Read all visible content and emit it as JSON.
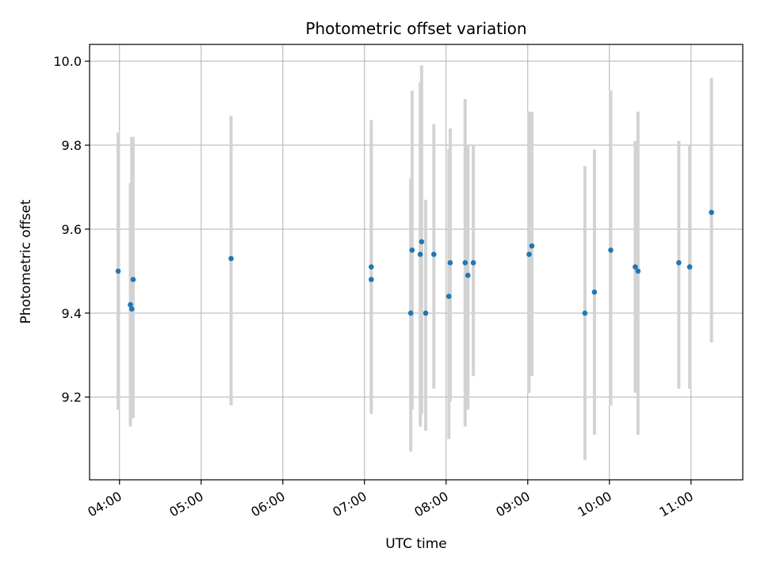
{
  "chart_data": {
    "type": "scatter",
    "title": "Photometric offset variation",
    "xlabel": "UTC time",
    "ylabel": "Photometric offset",
    "x_unit": "time of day (HH:MM)",
    "xlim": [
      "03:38",
      "11:38"
    ],
    "ylim": [
      9.003,
      10.04
    ],
    "x_ticks": [
      "04:00",
      "05:00",
      "06:00",
      "07:00",
      "08:00",
      "09:00",
      "10:00",
      "11:00"
    ],
    "y_ticks": [
      9.2,
      9.4,
      9.6,
      9.8,
      10.0
    ],
    "grid": true,
    "point_color": "#1f77b4",
    "errorbar_color": "#d3d3d3",
    "points": [
      {
        "t": "03:59",
        "y": 9.5,
        "lo": 9.17,
        "hi": 9.83
      },
      {
        "t": "04:08",
        "y": 9.42,
        "lo": 9.13,
        "hi": 9.71
      },
      {
        "t": "04:09",
        "y": 9.41,
        "lo": 9.15,
        "hi": 9.82
      },
      {
        "t": "04:10",
        "y": 9.48,
        "lo": 9.15,
        "hi": 9.82
      },
      {
        "t": "05:22",
        "y": 9.53,
        "lo": 9.18,
        "hi": 9.87
      },
      {
        "t": "07:05",
        "y": 9.51,
        "lo": 9.16,
        "hi": 9.86
      },
      {
        "t": "07:05",
        "y": 9.48,
        "lo": 9.17,
        "hi": 9.8
      },
      {
        "t": "07:34",
        "y": 9.4,
        "lo": 9.07,
        "hi": 9.72
      },
      {
        "t": "07:35",
        "y": 9.55,
        "lo": 9.17,
        "hi": 9.93
      },
      {
        "t": "07:41",
        "y": 9.54,
        "lo": 9.13,
        "hi": 9.95
      },
      {
        "t": "07:42",
        "y": 9.57,
        "lo": 9.16,
        "hi": 9.99
      },
      {
        "t": "07:45",
        "y": 9.4,
        "lo": 9.12,
        "hi": 9.67
      },
      {
        "t": "07:51",
        "y": 9.54,
        "lo": 9.22,
        "hi": 9.85
      },
      {
        "t": "08:02",
        "y": 9.44,
        "lo": 9.1,
        "hi": 9.79
      },
      {
        "t": "08:03",
        "y": 9.52,
        "lo": 9.19,
        "hi": 9.84
      },
      {
        "t": "08:14",
        "y": 9.52,
        "lo": 9.13,
        "hi": 9.91
      },
      {
        "t": "08:16",
        "y": 9.49,
        "lo": 9.17,
        "hi": 9.8
      },
      {
        "t": "08:20",
        "y": 9.52,
        "lo": 9.25,
        "hi": 9.8
      },
      {
        "t": "09:01",
        "y": 9.54,
        "lo": 9.21,
        "hi": 9.88
      },
      {
        "t": "09:03",
        "y": 9.56,
        "lo": 9.25,
        "hi": 9.88
      },
      {
        "t": "09:42",
        "y": 9.4,
        "lo": 9.05,
        "hi": 9.75
      },
      {
        "t": "09:49",
        "y": 9.45,
        "lo": 9.11,
        "hi": 9.79
      },
      {
        "t": "10:01",
        "y": 9.55,
        "lo": 9.18,
        "hi": 9.93
      },
      {
        "t": "10:19",
        "y": 9.51,
        "lo": 9.21,
        "hi": 9.81
      },
      {
        "t": "10:21",
        "y": 9.5,
        "lo": 9.11,
        "hi": 9.88
      },
      {
        "t": "10:51",
        "y": 9.52,
        "lo": 9.22,
        "hi": 9.81
      },
      {
        "t": "10:59",
        "y": 9.51,
        "lo": 9.22,
        "hi": 9.8
      },
      {
        "t": "11:15",
        "y": 9.64,
        "lo": 9.33,
        "hi": 9.96
      }
    ]
  }
}
